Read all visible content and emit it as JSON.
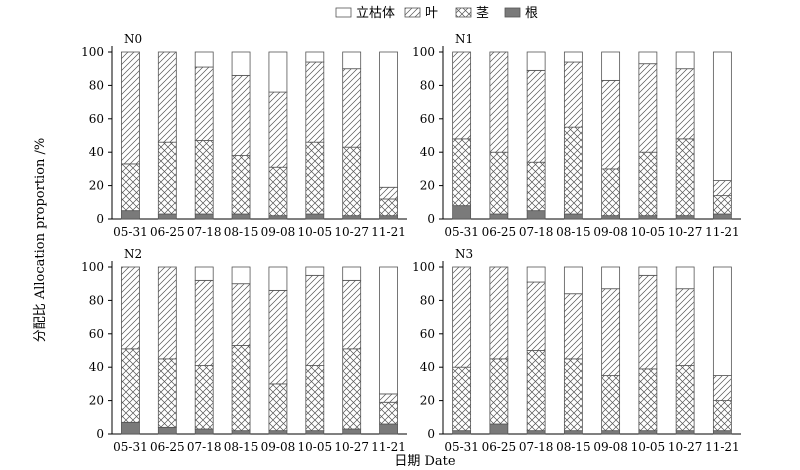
{
  "chart_data": {
    "type": "bar",
    "stacked": true,
    "normalized": true,
    "ylabel": "分配比 Allocation proportion /%",
    "xlabel": "日期 Date",
    "ylim": [
      0,
      100
    ],
    "yticks": [
      0,
      20,
      40,
      60,
      80,
      100
    ],
    "categories": [
      "05-31",
      "06-25",
      "07-18",
      "08-15",
      "09-08",
      "10-05",
      "10-27",
      "11-21"
    ],
    "legend": {
      "placement": "top-center",
      "entries": [
        {
          "key": "standing_dead",
          "label": "立枯体",
          "pattern": "blank"
        },
        {
          "key": "leaf",
          "label": "叶",
          "pattern": "diagonal-hatch"
        },
        {
          "key": "stem",
          "label": "茎",
          "pattern": "cross-hatch"
        },
        {
          "key": "root",
          "label": "根",
          "pattern": "solid-gray"
        }
      ]
    },
    "stack_order": [
      "root",
      "stem",
      "leaf",
      "standing_dead"
    ],
    "colors": {
      "root": "#7a7a7a",
      "line": "#555555"
    },
    "panels": [
      {
        "label": "N0",
        "series": [
          {
            "key": "root",
            "name": "根",
            "values": [
              5,
              3,
              3,
              3,
              2,
              3,
              2,
              2
            ]
          },
          {
            "key": "stem",
            "name": "茎",
            "values": [
              28,
              43,
              44,
              35,
              29,
              43,
              41,
              10
            ]
          },
          {
            "key": "leaf",
            "name": "叶",
            "values": [
              67,
              54,
              44,
              48,
              45,
              48,
              47,
              7
            ]
          },
          {
            "key": "standing_dead",
            "name": "立枯体",
            "values": [
              0,
              0,
              9,
              14,
              24,
              6,
              10,
              81
            ]
          }
        ]
      },
      {
        "label": "N1",
        "series": [
          {
            "key": "root",
            "name": "根",
            "values": [
              8,
              3,
              5,
              3,
              2,
              2,
              2,
              3
            ]
          },
          {
            "key": "stem",
            "name": "茎",
            "values": [
              40,
              37,
              29,
              52,
              28,
              38,
              46,
              11
            ]
          },
          {
            "key": "leaf",
            "name": "叶",
            "values": [
              52,
              60,
              55,
              39,
              53,
              53,
              42,
              9
            ]
          },
          {
            "key": "standing_dead",
            "name": "立枯体",
            "values": [
              0,
              0,
              11,
              6,
              17,
              7,
              10,
              77
            ]
          }
        ]
      },
      {
        "label": "N2",
        "series": [
          {
            "key": "root",
            "name": "根",
            "values": [
              7,
              4,
              3,
              2,
              2,
              2,
              3,
              6
            ]
          },
          {
            "key": "stem",
            "name": "茎",
            "values": [
              44,
              41,
              38,
              51,
              28,
              39,
              48,
              13
            ]
          },
          {
            "key": "leaf",
            "name": "叶",
            "values": [
              49,
              55,
              51,
              37,
              56,
              54,
              41,
              5
            ]
          },
          {
            "key": "standing_dead",
            "name": "立枯体",
            "values": [
              0,
              0,
              8,
              10,
              14,
              5,
              8,
              76
            ]
          }
        ]
      },
      {
        "label": "N3",
        "series": [
          {
            "key": "root",
            "name": "根",
            "values": [
              2,
              6,
              2,
              2,
              2,
              2,
              2,
              2
            ]
          },
          {
            "key": "stem",
            "name": "茎",
            "values": [
              38,
              39,
              48,
              43,
              33,
              37,
              39,
              18
            ]
          },
          {
            "key": "leaf",
            "name": "叶",
            "values": [
              60,
              55,
              41,
              39,
              52,
              56,
              46,
              15
            ]
          },
          {
            "key": "standing_dead",
            "name": "立枯体",
            "values": [
              0,
              0,
              9,
              16,
              13,
              5,
              13,
              65
            ]
          }
        ]
      }
    ]
  }
}
